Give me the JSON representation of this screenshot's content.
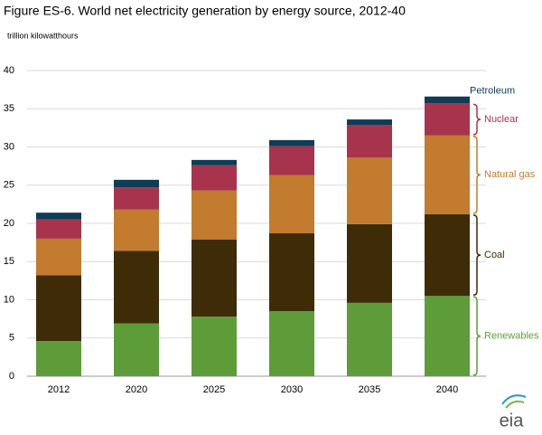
{
  "chart_data": {
    "type": "stacked_bar",
    "title": "Figure ES-6. World net electricity generation by energy source, 2012-40",
    "subtitle": "trillion kilowatthours",
    "categories": [
      "2012",
      "2020",
      "2025",
      "2030",
      "2035",
      "2040"
    ],
    "series": [
      {
        "name": "Renewables",
        "color": "#5e9c3a",
        "values": [
          4.6,
          6.9,
          7.8,
          8.5,
          9.6,
          10.5
        ]
      },
      {
        "name": "Coal",
        "color": "#3e2c08",
        "values": [
          8.6,
          9.5,
          10.1,
          10.2,
          10.3,
          10.7
        ]
      },
      {
        "name": "Natural gas",
        "color": "#c27b2f",
        "values": [
          4.8,
          5.4,
          6.4,
          7.6,
          8.7,
          10.3
        ]
      },
      {
        "name": "Nuclear",
        "color": "#a7344c",
        "values": [
          2.5,
          2.9,
          3.3,
          3.8,
          4.3,
          4.2
        ]
      },
      {
        "name": "Petroleum",
        "color": "#0f3c56",
        "values": [
          0.9,
          1.0,
          0.7,
          0.8,
          0.7,
          0.9
        ]
      }
    ],
    "ylim": [
      0,
      40
    ],
    "yticks": [
      0,
      5,
      10,
      15,
      20,
      25,
      30,
      35,
      40
    ],
    "grid": true,
    "logo": "eia"
  }
}
